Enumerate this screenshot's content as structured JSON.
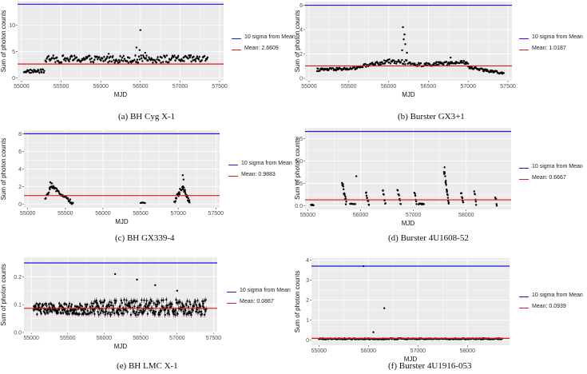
{
  "colors": {
    "panel_bg": "#ebebeb",
    "grid": "#ffffff",
    "points": "#000000",
    "sigma": "#1a1ad8",
    "mean": "#e01a1a"
  },
  "chart_data": [
    {
      "type": "scatter",
      "caption": "(a) BH Cyg X-1",
      "xlabel": "MJD",
      "ylabel": "Sum of photon counts",
      "xlim": [
        54950,
        57550
      ],
      "ylim": [
        -0.5,
        14.5
      ],
      "xticks": [
        55000,
        55500,
        56000,
        56500,
        57000,
        57500
      ],
      "yticks": [
        0,
        5,
        10
      ],
      "sigma_line": 14.0,
      "mean_line": 2.6609,
      "legend": {
        "sigma": "10 sigma from Mean",
        "mean": "Mean: 2.6609"
      },
      "segments": [
        {
          "x": [
            55030,
            55290
          ],
          "y": [
            1.3,
            1.3
          ],
          "n": 30,
          "s": 0.35
        },
        {
          "x": [
            55300,
            57350
          ],
          "y": [
            3.6,
            3.6
          ],
          "n": 200,
          "s": 0.7
        }
      ],
      "spikes": [
        {
          "x": 56500,
          "y": 9.1
        },
        {
          "x": 56450,
          "y": 5.8
        },
        {
          "x": 56490,
          "y": 5.3
        },
        {
          "x": 56100,
          "y": 4.6
        },
        {
          "x": 56560,
          "y": 4.8
        },
        {
          "x": 57120,
          "y": 4.3
        }
      ]
    },
    {
      "type": "scatter",
      "caption": "(b) Burster GX3+1",
      "xlabel": "MJD",
      "ylabel": "Sum of photon counts",
      "xlim": [
        54950,
        57550
      ],
      "ylim": [
        -0.2,
        6.3
      ],
      "xticks": [
        55000,
        55500,
        56000,
        56500,
        57000,
        57500
      ],
      "yticks": [
        0,
        2,
        4,
        6
      ],
      "sigma_line": 6.0,
      "mean_line": 1.0187,
      "legend": {
        "sigma": "10 sigma from Mean",
        "mean": "Mean: 1.0187"
      },
      "segments": [
        {
          "x": [
            55100,
            55600
          ],
          "y": [
            0.7,
            0.8
          ],
          "n": 70,
          "s": 0.12
        },
        {
          "x": [
            55600,
            56000
          ],
          "y": [
            0.9,
            1.4
          ],
          "n": 50,
          "s": 0.15
        },
        {
          "x": [
            56000,
            56300
          ],
          "y": [
            1.4,
            1.3
          ],
          "n": 30,
          "s": 0.18
        },
        {
          "x": [
            56300,
            57000
          ],
          "y": [
            1.1,
            1.3
          ],
          "n": 80,
          "s": 0.15
        },
        {
          "x": [
            57000,
            57450
          ],
          "y": [
            0.9,
            0.4
          ],
          "n": 60,
          "s": 0.1
        }
      ],
      "spikes": [
        {
          "x": 56180,
          "y": 4.2
        },
        {
          "x": 56200,
          "y": 3.6
        },
        {
          "x": 56190,
          "y": 3.2
        },
        {
          "x": 56210,
          "y": 2.8
        },
        {
          "x": 56170,
          "y": 2.3
        },
        {
          "x": 56230,
          "y": 2.1
        },
        {
          "x": 56780,
          "y": 1.7
        }
      ]
    },
    {
      "type": "scatter",
      "caption": "(c) BH GX339-4",
      "xlabel": "MJD",
      "ylabel": "Sum of photon counts",
      "xlim": [
        54950,
        57550
      ],
      "ylim": [
        -0.4,
        8.4
      ],
      "xticks": [
        55000,
        55500,
        56000,
        56500,
        57000,
        57500
      ],
      "yticks": [
        0,
        2,
        4,
        6,
        8
      ],
      "sigma_line": 8.0,
      "mean_line": 0.9883,
      "legend": {
        "sigma": "10 sigma from Mean",
        "mean": "Mean: 0.9883"
      },
      "segments": [
        {
          "x": [
            55230,
            55320
          ],
          "y": [
            0.5,
            2.3
          ],
          "n": 15,
          "s": 0.2
        },
        {
          "x": [
            55320,
            55600
          ],
          "y": [
            2.0,
            0.1
          ],
          "n": 45,
          "s": 0.2
        },
        {
          "x": [
            56500,
            56560
          ],
          "y": [
            0.15,
            0.15
          ],
          "n": 6,
          "s": 0.05
        },
        {
          "x": [
            56950,
            57060
          ],
          "y": [
            0.3,
            2.1
          ],
          "n": 20,
          "s": 0.25
        },
        {
          "x": [
            57060,
            57150
          ],
          "y": [
            2.0,
            0.2
          ],
          "n": 20,
          "s": 0.25
        }
      ],
      "spikes": [
        {
          "x": 55300,
          "y": 2.5
        },
        {
          "x": 57060,
          "y": 3.3
        },
        {
          "x": 57070,
          "y": 2.8
        }
      ]
    },
    {
      "type": "scatter",
      "caption": "(d) Burster 4U1608-52",
      "xlabel": "MJD",
      "ylabel": "Sum of photon counts",
      "xlim": [
        54950,
        58850
      ],
      "ylim": [
        -0.4,
        8.7
      ],
      "xticks": [
        55000,
        56000,
        57000,
        58000
      ],
      "yticks": [
        0.0,
        2.5,
        5.0,
        7.5
      ],
      "sigma_line": 8.3,
      "mean_line": 0.6667,
      "legend": {
        "sigma": "10 sigma from Mean",
        "mean": "Mean: 0.6667"
      },
      "segments": [
        {
          "x": [
            55060,
            55110
          ],
          "y": [
            0.1,
            0.1
          ],
          "n": 6,
          "s": 0.05
        },
        {
          "x": [
            55650,
            55730
          ],
          "y": [
            2.6,
            0.3
          ],
          "n": 15,
          "s": 0.3
        },
        {
          "x": [
            55800,
            55900
          ],
          "y": [
            0.2,
            0.2
          ],
          "n": 8,
          "s": 0.05
        },
        {
          "x": [
            56100,
            56160
          ],
          "y": [
            1.5,
            0.1
          ],
          "n": 10,
          "s": 0.2
        },
        {
          "x": [
            56420,
            56470
          ],
          "y": [
            1.7,
            0.2
          ],
          "n": 8,
          "s": 0.2
        },
        {
          "x": [
            56700,
            56760
          ],
          "y": [
            1.8,
            0.1
          ],
          "n": 10,
          "s": 0.2
        },
        {
          "x": [
            57020,
            57060
          ],
          "y": [
            1.5,
            0.2
          ],
          "n": 6,
          "s": 0.2
        },
        {
          "x": [
            57100,
            57200
          ],
          "y": [
            0.2,
            0.2
          ],
          "n": 10,
          "s": 0.05
        },
        {
          "x": [
            57580,
            57670
          ],
          "y": [
            4.0,
            0.3
          ],
          "n": 18,
          "s": 0.3
        },
        {
          "x": [
            57900,
            57940
          ],
          "y": [
            1.5,
            0.2
          ],
          "n": 6,
          "s": 0.2
        },
        {
          "x": [
            58150,
            58190
          ],
          "y": [
            1.7,
            0.2
          ],
          "n": 6,
          "s": 0.2
        },
        {
          "x": [
            58550,
            58580
          ],
          "y": [
            1.0,
            0.2
          ],
          "n": 5,
          "s": 0.2
        }
      ],
      "spikes": [
        {
          "x": 55920,
          "y": 3.3
        },
        {
          "x": 57590,
          "y": 4.3
        }
      ]
    },
    {
      "type": "scatter",
      "caption": "(e) BH LMC X-1",
      "xlabel": "MJD",
      "ylabel": "Sum of photon counts",
      "xlim": [
        54900,
        57550
      ],
      "ylim": [
        0.0,
        0.27
      ],
      "xticks": [
        55000,
        55500,
        56000,
        56500,
        57000,
        57500
      ],
      "yticks": [
        0.0,
        0.1,
        0.2
      ],
      "sigma_line": 0.25,
      "mean_line": 0.0867,
      "legend": {
        "sigma": "10 sigma from Mean",
        "mean": "Mean: 0.0867"
      },
      "segments": [
        {
          "x": [
            55030,
            55780
          ],
          "y": [
            0.085,
            0.085
          ],
          "n": 140,
          "s": 0.02
        },
        {
          "x": [
            55800,
            57400
          ],
          "y": [
            0.09,
            0.09
          ],
          "n": 260,
          "s": 0.028
        }
      ],
      "spikes": [
        {
          "x": 56150,
          "y": 0.21
        },
        {
          "x": 56450,
          "y": 0.19
        },
        {
          "x": 56700,
          "y": 0.17
        },
        {
          "x": 57000,
          "y": 0.15
        }
      ]
    },
    {
      "type": "scatter",
      "caption": "(f) Burster 4U1916-053",
      "xlabel": "MJD",
      "ylabel": "Sum of photon counts",
      "xlim": [
        54850,
        58850
      ],
      "ylim": [
        -0.25,
        4.1
      ],
      "xticks": [
        55000,
        56000,
        57000,
        58000
      ],
      "yticks": [
        0,
        1,
        2,
        3,
        4
      ],
      "sigma_line": 3.7,
      "mean_line": 0.0939,
      "legend": {
        "sigma": "10 sigma from Mean",
        "mean": "Mean: 0.0939"
      },
      "segments": [
        {
          "x": [
            55000,
            58700
          ],
          "y": [
            0.07,
            0.07
          ],
          "n": 260,
          "s": 0.03
        }
      ],
      "spikes": [
        {
          "x": 55900,
          "y": 3.7
        },
        {
          "x": 56320,
          "y": 1.6
        },
        {
          "x": 56100,
          "y": 0.4
        }
      ]
    }
  ]
}
